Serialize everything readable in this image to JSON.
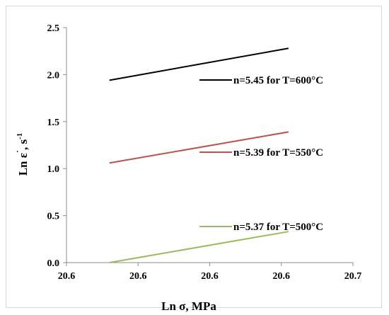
{
  "chart_data": {
    "type": "line",
    "xlabel": "Ln σ, MPa",
    "ylabel_main": "Ln ε",
    "ylabel_dot": "˙",
    "ylabel_unit": ", s",
    "ylabel_exp": "-1",
    "x_tick_labels": [
      "20.6",
      "20.6",
      "20.6",
      "20.6",
      "20.7"
    ],
    "y_tick_labels": [
      "0.0",
      "0.5",
      "1.0",
      "1.5",
      "2.0",
      "2.5"
    ],
    "xlim": [
      20.58,
      20.7
    ],
    "ylim": [
      0,
      2.5
    ],
    "grid": false,
    "series": [
      {
        "name": "n=5.45 for T=600°C",
        "color": "#000000",
        "x": [
          20.598,
          20.673
        ],
        "y": [
          1.94,
          2.28
        ]
      },
      {
        "name": "n=5.39 for T=550°C",
        "color": "#c0504d",
        "x": [
          20.598,
          20.673
        ],
        "y": [
          1.06,
          1.39
        ]
      },
      {
        "name": "n=5.37 for T=500°C",
        "color": "#9bbb59",
        "x": [
          20.598,
          20.673
        ],
        "y": [
          0.0,
          0.33
        ]
      }
    ]
  }
}
